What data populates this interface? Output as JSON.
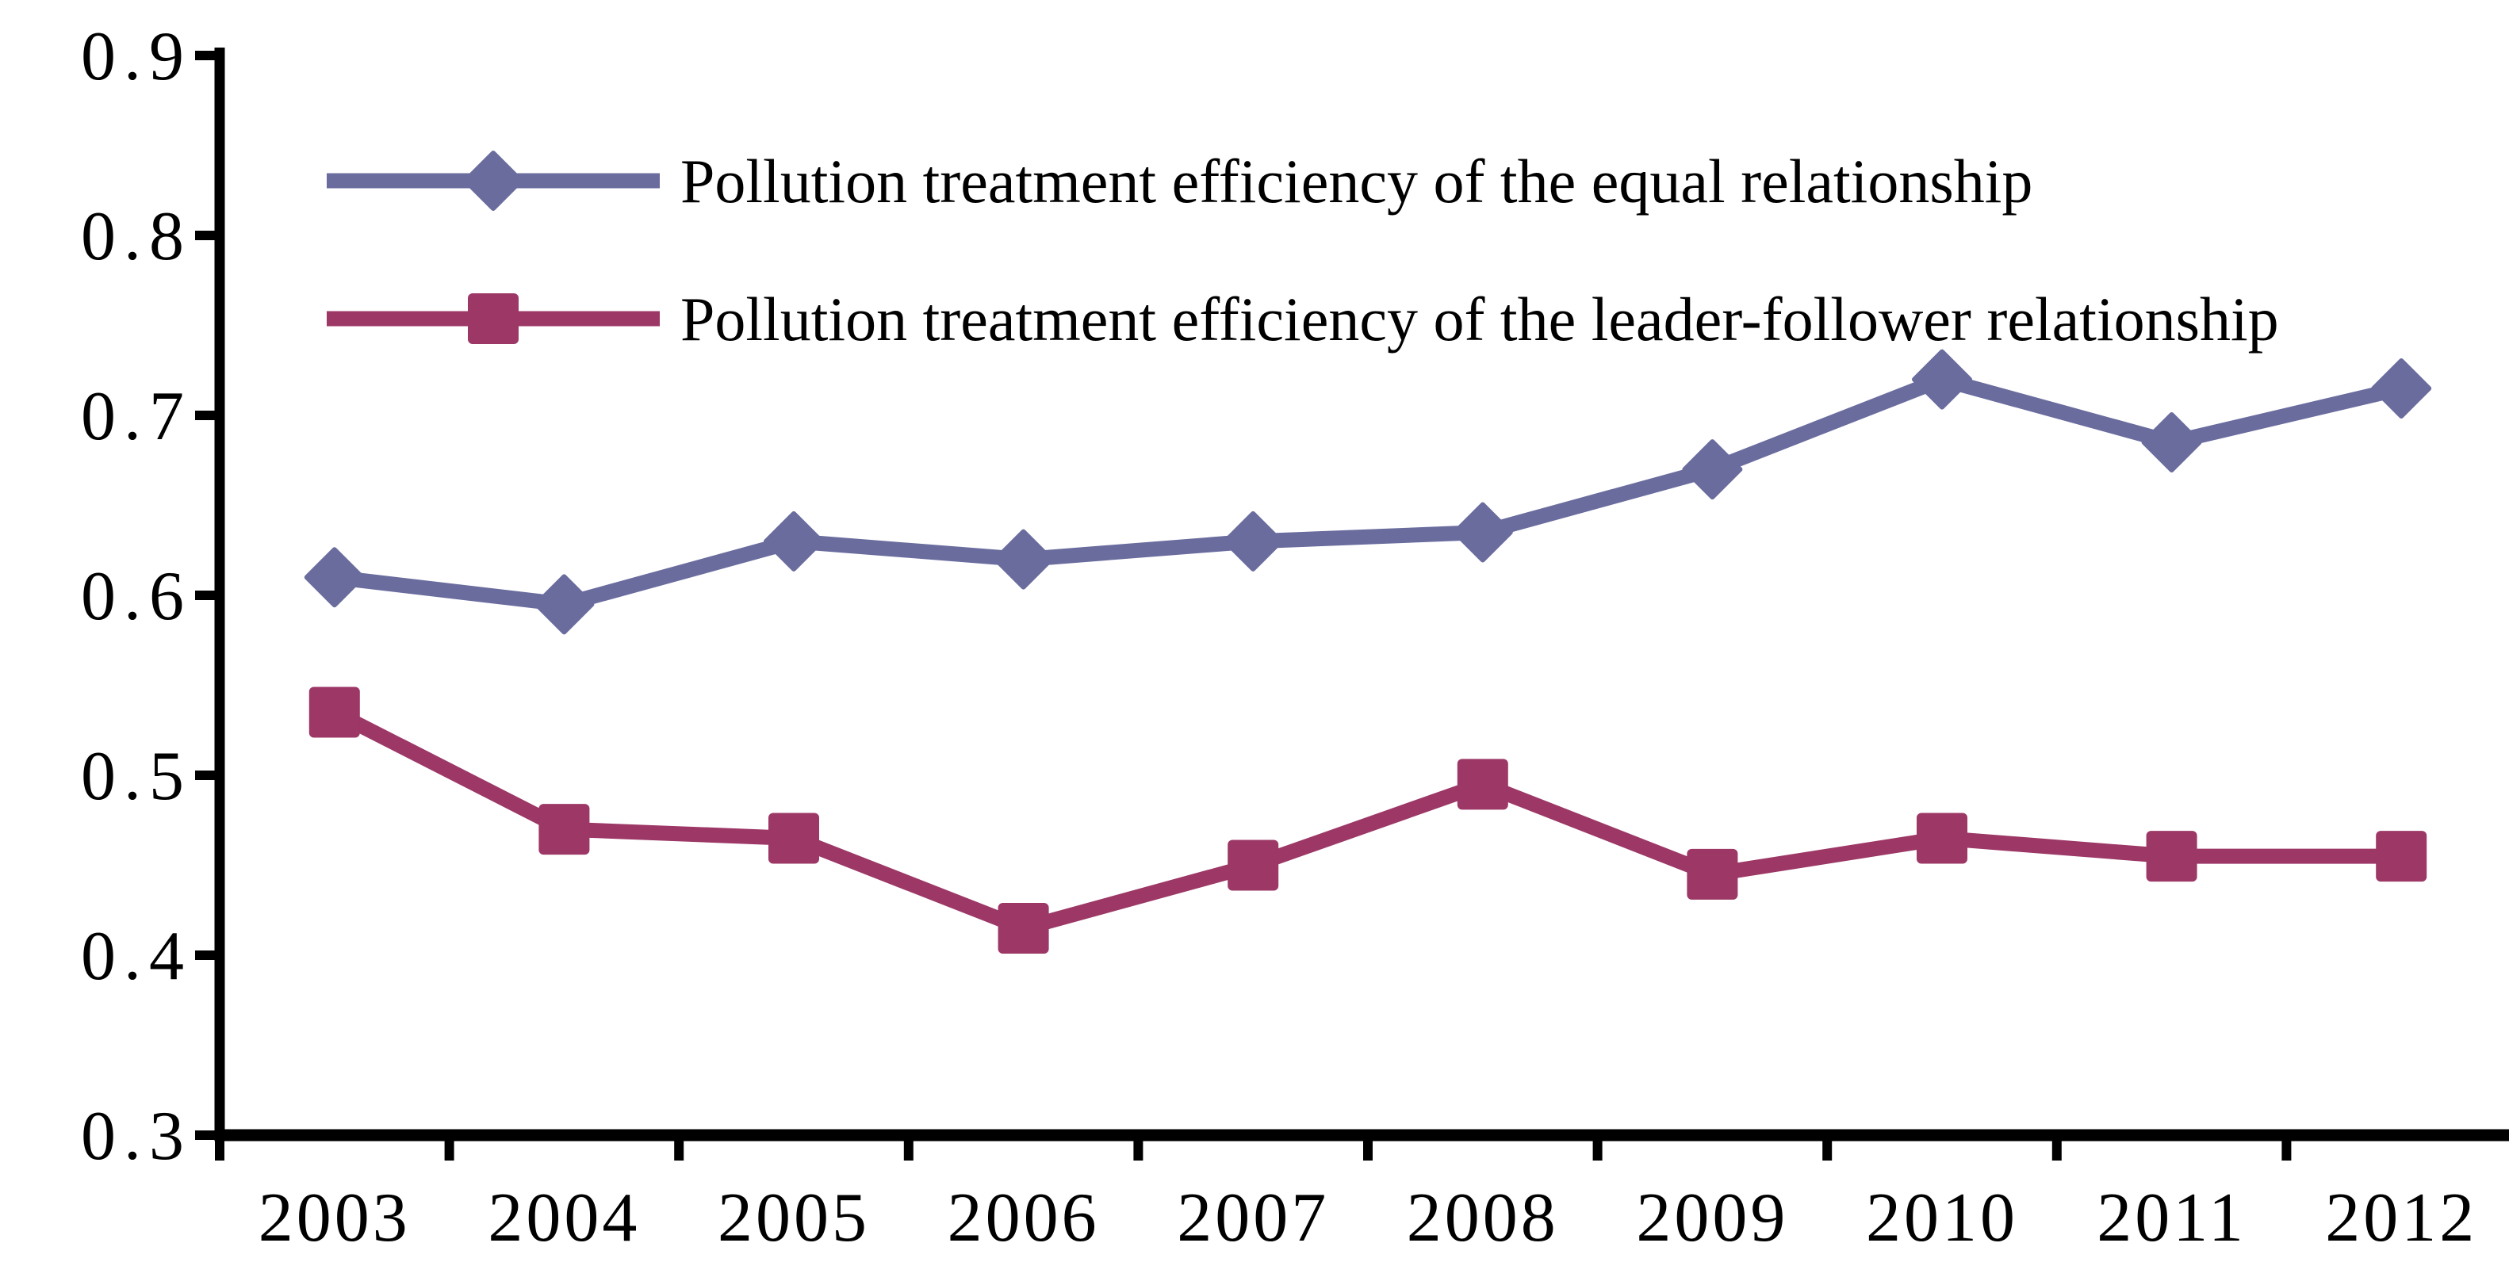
{
  "chart_data": {
    "type": "line",
    "title": "",
    "xlabel": "",
    "ylabel": "",
    "categories": [
      "2003",
      "2004",
      "2005",
      "2006",
      "2007",
      "2008",
      "2009",
      "2010",
      "2011",
      "2012"
    ],
    "series": [
      {
        "name": "Pollution treatment efficiency of the equal relationship",
        "marker": "diamond",
        "color": "#6A6C9E",
        "values": [
          0.61,
          0.595,
          0.63,
          0.62,
          0.63,
          0.635,
          0.67,
          0.72,
          0.685,
          0.715
        ]
      },
      {
        "name": "Pollution treatment efficiency of the leader-follower relationship",
        "marker": "square",
        "color": "#9C3766",
        "values": [
          0.535,
          0.47,
          0.465,
          0.415,
          0.45,
          0.495,
          0.445,
          0.465,
          0.455,
          0.455
        ]
      }
    ],
    "ylim": [
      0.3,
      0.9
    ],
    "ytick_step": 0.1,
    "y_tick_labels": [
      "0.3",
      "0.4",
      "0.5",
      "0.6",
      "0.7",
      "0.8",
      "0.9"
    ],
    "grid": false,
    "legend_position": "top-left-inside",
    "axis_color": "#000000",
    "background_color": "#FFFFFF"
  }
}
